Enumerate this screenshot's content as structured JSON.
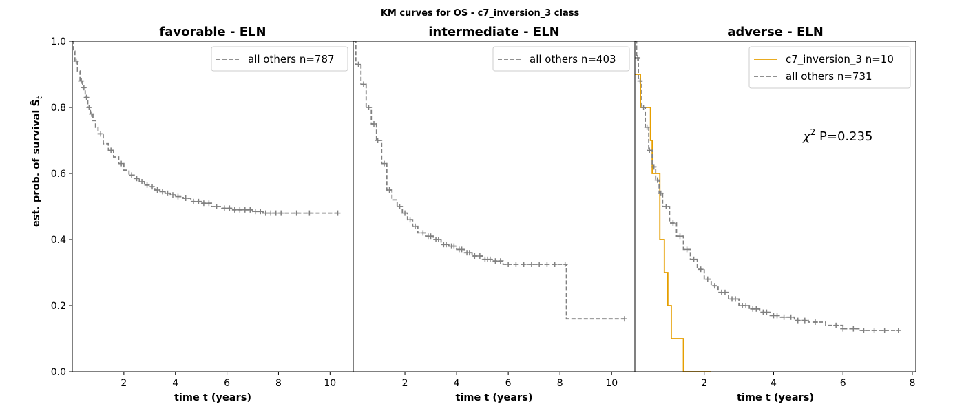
{
  "figure": {
    "suptitle": "KM curves for OS - c7_inversion_3 class",
    "ylabel": "est. prob. of survival Ŝ",
    "ylabel_sub": "t",
    "annotation_prefix": "χ",
    "annotation_sup": "2",
    "annotation_text": " P=0.235"
  },
  "colors": {
    "all_others": "#808080",
    "c7_inversion_3": "#E69F00"
  },
  "chart_data": [
    {
      "type": "line",
      "title": "favorable - ELN",
      "xlabel": "time t (years)",
      "xlim": [
        0,
        10.9
      ],
      "ylim": [
        0,
        1
      ],
      "xticks": [
        2,
        4,
        6,
        8,
        10
      ],
      "yticks": [
        "0.0",
        "0.2",
        "0.4",
        "0.6",
        "0.8",
        "1.0"
      ],
      "legend_position": "top-right",
      "series": [
        {
          "name": "all others n=787",
          "color_key": "all_others",
          "dashed": true,
          "x": [
            0,
            0.05,
            0.1,
            0.2,
            0.3,
            0.4,
            0.5,
            0.6,
            0.7,
            0.8,
            0.9,
            1.0,
            1.2,
            1.4,
            1.6,
            1.8,
            2.0,
            2.2,
            2.4,
            2.6,
            2.8,
            3.0,
            3.2,
            3.4,
            3.6,
            3.8,
            4.0,
            4.3,
            4.6,
            5.0,
            5.4,
            5.8,
            6.2,
            6.6,
            7.0,
            7.4,
            7.8,
            8.2,
            8.8,
            9.4,
            10.3
          ],
          "y": [
            1.0,
            0.97,
            0.94,
            0.91,
            0.88,
            0.86,
            0.83,
            0.8,
            0.78,
            0.76,
            0.74,
            0.72,
            0.69,
            0.67,
            0.65,
            0.63,
            0.61,
            0.595,
            0.585,
            0.575,
            0.565,
            0.56,
            0.55,
            0.545,
            0.54,
            0.535,
            0.53,
            0.525,
            0.515,
            0.51,
            0.5,
            0.495,
            0.49,
            0.49,
            0.485,
            0.48,
            0.48,
            0.48,
            0.48,
            0.48,
            0.48
          ],
          "censor_x": [
            0.15,
            0.35,
            0.45,
            0.55,
            0.65,
            0.75,
            1.1,
            1.5,
            1.9,
            2.3,
            2.5,
            2.7,
            2.9,
            3.1,
            3.3,
            3.5,
            3.7,
            3.9,
            4.1,
            4.4,
            4.7,
            4.9,
            5.1,
            5.3,
            5.6,
            5.9,
            6.1,
            6.3,
            6.5,
            6.7,
            6.9,
            7.1,
            7.3,
            7.5,
            7.7,
            7.9,
            8.1,
            8.7,
            9.2,
            10.3
          ]
        }
      ]
    },
    {
      "type": "line",
      "title": "intermediate - ELN",
      "xlabel": "time t (years)",
      "xlim": [
        0,
        10.9
      ],
      "ylim": [
        0,
        1
      ],
      "xticks": [
        2,
        4,
        6,
        8,
        10
      ],
      "yticks": [],
      "legend_position": "top-right",
      "series": [
        {
          "name": "all others n=403",
          "color_key": "all_others",
          "dashed": true,
          "x": [
            0,
            0.1,
            0.3,
            0.5,
            0.7,
            0.9,
            1.1,
            1.3,
            1.5,
            1.7,
            1.9,
            2.1,
            2.3,
            2.5,
            2.8,
            3.1,
            3.4,
            3.7,
            4.0,
            4.3,
            4.6,
            5.0,
            5.4,
            5.8,
            6.5,
            7.2,
            8.2,
            8.25,
            10.5
          ],
          "y": [
            1.0,
            0.93,
            0.87,
            0.8,
            0.75,
            0.7,
            0.63,
            0.55,
            0.52,
            0.5,
            0.48,
            0.46,
            0.44,
            0.42,
            0.41,
            0.4,
            0.385,
            0.38,
            0.37,
            0.36,
            0.35,
            0.34,
            0.335,
            0.325,
            0.325,
            0.325,
            0.325,
            0.16,
            0.16
          ],
          "censor_x": [
            0.2,
            0.4,
            0.6,
            0.8,
            0.95,
            1.2,
            1.4,
            1.8,
            2.0,
            2.2,
            2.4,
            2.7,
            2.9,
            3.0,
            3.2,
            3.3,
            3.5,
            3.6,
            3.8,
            3.9,
            4.1,
            4.2,
            4.4,
            4.5,
            4.7,
            4.9,
            5.1,
            5.2,
            5.3,
            5.5,
            5.7,
            6.0,
            6.3,
            6.6,
            6.9,
            7.2,
            7.5,
            7.8,
            8.2,
            10.5
          ]
        }
      ]
    },
    {
      "type": "line",
      "title": "adverse - ELN",
      "xlabel": "time t (years)",
      "xlim": [
        0,
        8.1
      ],
      "ylim": [
        0,
        1
      ],
      "xticks": [
        2,
        4,
        6,
        8
      ],
      "yticks": [],
      "legend_position": "top-right",
      "series": [
        {
          "name": "c7_inversion_3 n=10",
          "color_key": "c7_inversion_3",
          "dashed": false,
          "x": [
            0,
            0.16,
            0.27,
            0.45,
            0.5,
            0.65,
            0.72,
            0.85,
            0.95,
            1.05,
            1.4,
            1.8,
            2.2
          ],
          "y": [
            0.9,
            0.8,
            0.8,
            0.7,
            0.6,
            0.6,
            0.4,
            0.3,
            0.2,
            0.1,
            0.0,
            0.0,
            0.0
          ],
          "censor_x": []
        },
        {
          "name": "all others n=731",
          "color_key": "all_others",
          "dashed": true,
          "x": [
            0,
            0.05,
            0.1,
            0.2,
            0.3,
            0.4,
            0.5,
            0.6,
            0.7,
            0.8,
            1.0,
            1.2,
            1.4,
            1.6,
            1.8,
            2.0,
            2.2,
            2.4,
            2.7,
            3.0,
            3.3,
            3.6,
            3.9,
            4.2,
            4.6,
            5.0,
            5.5,
            6.0,
            6.5,
            7.0,
            7.6
          ],
          "y": [
            1.0,
            0.95,
            0.88,
            0.8,
            0.74,
            0.67,
            0.62,
            0.58,
            0.54,
            0.5,
            0.45,
            0.41,
            0.37,
            0.34,
            0.31,
            0.28,
            0.26,
            0.24,
            0.22,
            0.2,
            0.19,
            0.18,
            0.17,
            0.165,
            0.155,
            0.15,
            0.14,
            0.13,
            0.125,
            0.125,
            0.125
          ],
          "censor_x": [
            0.08,
            0.15,
            0.25,
            0.35,
            0.42,
            0.55,
            0.65,
            0.75,
            0.9,
            1.1,
            1.3,
            1.5,
            1.7,
            1.9,
            2.1,
            2.3,
            2.5,
            2.6,
            2.8,
            2.9,
            3.1,
            3.2,
            3.4,
            3.5,
            3.7,
            3.8,
            4.0,
            4.1,
            4.3,
            4.5,
            4.7,
            4.9,
            5.2,
            5.8,
            6.0,
            6.3,
            6.6,
            6.9,
            7.2,
            7.6
          ]
        }
      ]
    }
  ]
}
